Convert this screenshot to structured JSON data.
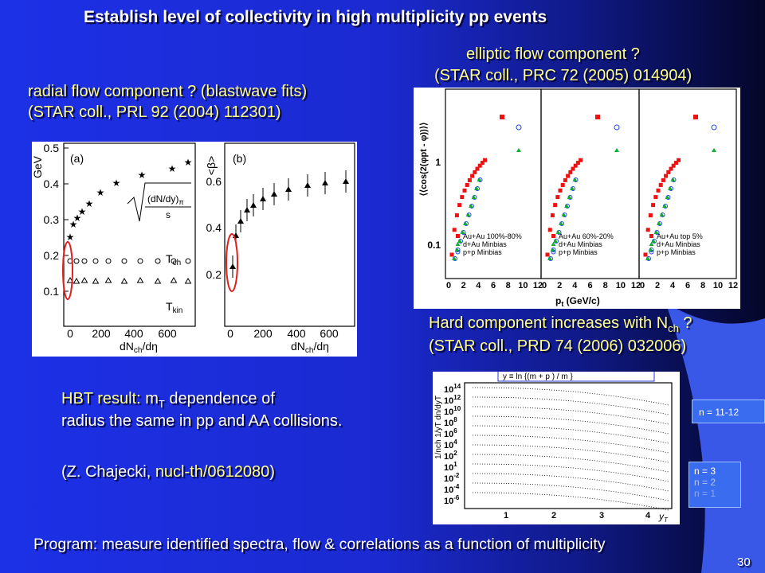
{
  "title": "Establish level of collectivity in high multiplicity pp events",
  "radial": [
    "radial flow component ? (blastwave fits)",
    "(STAR coll., PRL 92 (2004) 112301)"
  ],
  "elliptic": [
    "elliptic flow component ?",
    "(STAR coll., PRC 72 (2005) 014904)"
  ],
  "hard": {
    "text": "Hard component increases with N",
    "sub": "ch",
    "end": " ?",
    "ref": "(STAR coll., PRD 74 (2006) 032006)"
  },
  "hbt": {
    "label": "HBT result:",
    "text": " m",
    "sub": "T",
    "end": " dependence of",
    "line2": "radius the same in pp and AA collisions."
  },
  "citation": {
    "author": "(Z. Chajecki, ",
    "link": "nucl-th/0612080",
    "close": ")"
  },
  "program": "Program: measure identified spectra, flow & correlations as a function of multiplicity",
  "page_number": "30",
  "radial_plot": {
    "panel_a": "(a)",
    "panel_b": "(b)",
    "y_unit": "GeV",
    "y_b": "<β>",
    "formula_num": "(dN/dy)",
    "formula_sub": "π",
    "formula_den": "s",
    "t": "T",
    "t_ch": "ch",
    "t_kin": "kin",
    "x_main": "dN",
    "x_sub": "ch",
    "x_end": "/dη",
    "a_yticks": [
      0.5,
      0.4,
      0.3,
      0.2,
      0.1
    ],
    "a_xticks": [
      0,
      200,
      400,
      600
    ],
    "b_yticks": [
      0.6,
      0.4,
      0.2
    ],
    "b_xticks": [
      0,
      200,
      400,
      600
    ]
  },
  "elliptic_plot": {
    "y_label": "⟨⟨cos(2(φpt - φ))⟩⟩",
    "yticks": [
      1,
      0.1
    ],
    "xticks": [
      0,
      2,
      4,
      6,
      8,
      10,
      12
    ],
    "x_main": "p",
    "x_sub": "t",
    "x_end": " (GeV/c)",
    "legends": [
      [
        "Au+Au 100%-80%",
        "d+Au Minbias",
        "p+p Minbias"
      ],
      [
        "Au+Au 60%-20%",
        "d+Au Minbias",
        "p+p Minbias"
      ],
      [
        "Au+Au top 5%",
        "d+Au Minbias",
        "p+p Minbias"
      ]
    ]
  },
  "hard_plot": {
    "formula": "y  ≡  ln {(m  +  p )  /  m   }",
    "y_label": "1/nch 1/yT dn/dyT",
    "y_base": "10",
    "y_exps": [
      14,
      12,
      10,
      8,
      6,
      4,
      2,
      1,
      -2,
      -4,
      -6
    ],
    "xticks": [
      1,
      2,
      3,
      4
    ],
    "x_main": "y",
    "x_sub": "T",
    "boxes": [
      "n = 11-12",
      "n = 3",
      "n = 2",
      "n = 1"
    ]
  }
}
